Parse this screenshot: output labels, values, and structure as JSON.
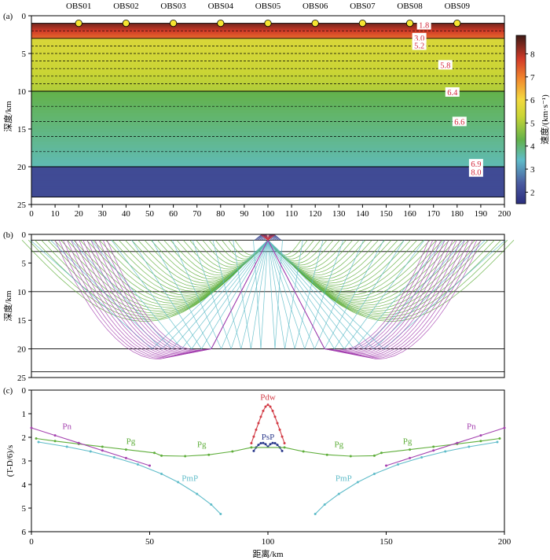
{
  "chart_data": [
    {
      "panel_label": "(a)",
      "type": "heatmap",
      "title": "",
      "xlim": [
        0,
        200
      ],
      "ylim": [
        0,
        25
      ],
      "x_ticks": [
        0,
        10,
        20,
        30,
        40,
        50,
        60,
        70,
        80,
        90,
        100,
        110,
        120,
        130,
        140,
        150,
        160,
        170,
        180,
        190,
        200
      ],
      "y_ticks": [
        0,
        5,
        10,
        15,
        20,
        25
      ],
      "ylabel": "深度/km",
      "model_bottom_depth": 24,
      "stations": [
        {
          "name": "OBS01",
          "x": 20
        },
        {
          "name": "OBS02",
          "x": 40
        },
        {
          "name": "OBS03",
          "x": 60
        },
        {
          "name": "OBS04",
          "x": 80
        },
        {
          "name": "OBS05",
          "x": 100
        },
        {
          "name": "OBS06",
          "x": 120
        },
        {
          "name": "OBS07",
          "x": 140
        },
        {
          "name": "OBS08",
          "x": 160
        },
        {
          "name": "OBS09",
          "x": 180
        }
      ],
      "station_depth": 1.0,
      "layers": [
        {
          "top": 1.0,
          "bottom": 3.0,
          "v_top": 1.8,
          "v_bottom": 3.0
        },
        {
          "top": 3.0,
          "bottom": 10.0,
          "v_top": 5.2,
          "v_bottom": 5.8
        },
        {
          "top": 10.0,
          "bottom": 20.0,
          "v_top": 6.4,
          "v_bottom": 6.9
        },
        {
          "top": 20.0,
          "bottom": 24.0,
          "v_top": 8.0,
          "v_bottom": 8.0
        }
      ],
      "solid_boundaries": [
        1,
        3,
        10,
        20,
        24
      ],
      "dashed_lines": [
        2,
        4,
        5,
        6,
        7,
        8,
        9,
        12,
        14,
        16,
        18
      ],
      "velocity_labels": [
        {
          "text": "1.8",
          "x": 166,
          "depth": 1.2
        },
        {
          "text": "3.0",
          "x": 164,
          "depth": 2.9
        },
        {
          "text": "5.2",
          "x": 164,
          "depth": 3.9
        },
        {
          "text": "5.8",
          "x": 175,
          "depth": 6.5
        },
        {
          "text": "6.4",
          "x": 178,
          "depth": 10.1
        },
        {
          "text": "6.6",
          "x": 181,
          "depth": 14.0
        },
        {
          "text": "6.9",
          "x": 188,
          "depth": 19.6
        },
        {
          "text": "8.0",
          "x": 188,
          "depth": 20.7
        }
      ],
      "colorbar": {
        "label": "速度/(km·s⁻¹)",
        "min": 1.5,
        "max": 8.8,
        "ticks": [
          2,
          3,
          4,
          5,
          6,
          7,
          8
        ]
      }
    },
    {
      "panel_label": "(b)",
      "type": "line",
      "title": "",
      "ylabel": "深度/km",
      "xlim": [
        0,
        200
      ],
      "ylim": [
        0,
        25
      ],
      "y_ticks": [
        0,
        5,
        10,
        15,
        20,
        25
      ],
      "source_x": 100,
      "source_depth": 1.0,
      "boundaries": [
        1,
        3,
        10,
        20,
        24
      ],
      "series": [
        {
          "name": "Pdw",
          "color": "#d23a44",
          "n_rays": 9
        },
        {
          "name": "PsP",
          "color": "#2b3a8c",
          "n_rays": 9
        },
        {
          "name": "Pg",
          "color": "#5fae3b",
          "n_rays": 34
        },
        {
          "name": "PmP",
          "color": "#5fbcc9",
          "n_rays": 12
        },
        {
          "name": "Pn",
          "color": "#a543b0",
          "n_rays": 14
        }
      ]
    },
    {
      "panel_label": "(c)",
      "type": "scatter",
      "title": "",
      "xlabel": "距离/km",
      "ylabel": "(T-D/6)/s",
      "xlim": [
        0,
        200
      ],
      "ylim": [
        0,
        6
      ],
      "x_ticks": [
        0,
        50,
        100,
        150,
        200
      ],
      "y_ticks": [
        0,
        1,
        2,
        3,
        4,
        5,
        6
      ],
      "y_inverted": true,
      "series": [
        {
          "name": "Pdw",
          "color": "#d23a44",
          "label_at": [
            100,
            0.42
          ],
          "x": [
            93,
            94,
            95,
            96,
            97,
            98,
            99,
            100,
            101,
            102,
            103,
            104,
            105,
            106,
            107
          ],
          "y": [
            2.25,
            1.97,
            1.68,
            1.4,
            1.13,
            0.88,
            0.7,
            0.62,
            0.7,
            0.88,
            1.13,
            1.4,
            1.68,
            1.97,
            2.25
          ]
        },
        {
          "name": "PsP",
          "color": "#2b3a8c",
          "label_at": [
            100,
            2.1
          ],
          "x": [
            94,
            95,
            96,
            97,
            98,
            99,
            100,
            101,
            102,
            103,
            104,
            105,
            106
          ],
          "y": [
            2.58,
            2.43,
            2.32,
            2.25,
            2.24,
            2.29,
            2.4,
            2.29,
            2.24,
            2.25,
            2.32,
            2.43,
            2.58
          ]
        },
        {
          "name": "Pg",
          "color": "#5fae3b",
          "label_at": [
            [
              42,
              2.28
            ],
            [
              72,
              2.42
            ],
            [
              130,
              2.42
            ],
            [
              159,
              2.28
            ]
          ],
          "x": [
            2,
            10,
            20,
            30,
            40,
            52,
            55,
            65,
            75,
            85,
            93,
            107,
            115,
            125,
            135,
            145,
            148,
            160,
            170,
            180,
            190,
            198
          ],
          "y": [
            2.05,
            2.16,
            2.28,
            2.4,
            2.52,
            2.66,
            2.78,
            2.8,
            2.74,
            2.6,
            2.43,
            2.43,
            2.6,
            2.74,
            2.8,
            2.78,
            2.66,
            2.52,
            2.4,
            2.28,
            2.16,
            2.05
          ]
        },
        {
          "name": "Pn",
          "color": "#a543b0",
          "label_at": [
            [
              15,
              1.65
            ],
            [
              186,
              1.65
            ]
          ],
          "x": [
            0,
            10,
            20,
            30,
            40,
            50,
            150,
            160,
            170,
            180,
            190,
            200
          ],
          "y": [
            1.6,
            1.92,
            2.24,
            2.56,
            2.88,
            3.2,
            3.2,
            2.88,
            2.56,
            2.24,
            1.92,
            1.6
          ]
        },
        {
          "name": "PmP",
          "color": "#5fbcc9",
          "label_at": [
            [
              67,
              3.85
            ],
            [
              132,
              3.85
            ]
          ],
          "x": [
            3,
            15,
            25,
            35,
            45,
            55,
            62,
            70,
            76,
            80,
            120,
            124,
            130,
            138,
            145,
            155,
            165,
            175,
            185,
            197
          ],
          "y": [
            2.2,
            2.4,
            2.6,
            2.85,
            3.15,
            3.55,
            3.9,
            4.4,
            4.85,
            5.25,
            5.25,
            4.85,
            4.4,
            3.9,
            3.55,
            3.15,
            2.85,
            2.6,
            2.4,
            2.2
          ]
        }
      ]
    }
  ]
}
